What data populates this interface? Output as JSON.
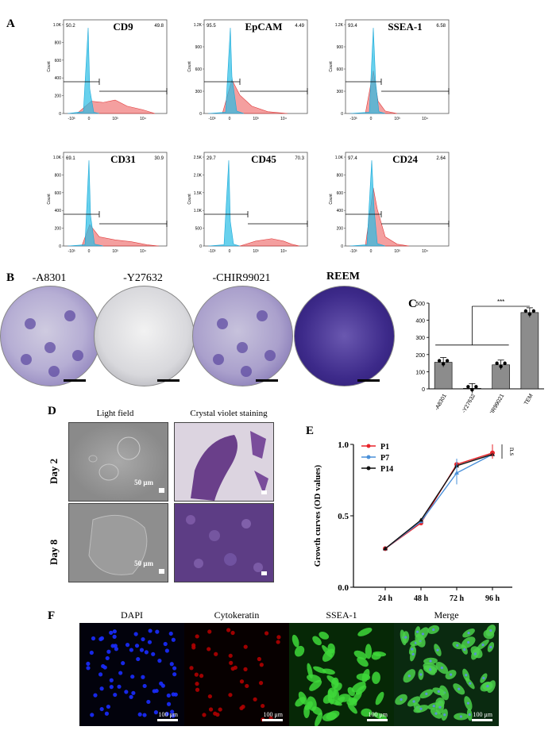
{
  "panels": {
    "a": "A",
    "b": "B",
    "c": "C",
    "d": "D",
    "e": "E",
    "f": "F"
  },
  "flow": [
    {
      "marker": "CD9",
      "left_pct": "50.2",
      "right_pct": "49.8",
      "yticks": [
        "0",
        "200",
        "400",
        "600",
        "800",
        "1.0K"
      ],
      "xticks": [
        "-10³",
        "0",
        "10³",
        "10⁴"
      ]
    },
    {
      "marker": "EpCAM",
      "left_pct": "95.5",
      "right_pct": "4.49",
      "yticks": [
        "0",
        "300",
        "600",
        "900",
        "1.2K"
      ],
      "xticks": [
        "-10³",
        "0",
        "10³",
        "10⁴"
      ]
    },
    {
      "marker": "SSEA-1",
      "left_pct": "93.4",
      "right_pct": "6.58",
      "yticks": [
        "0",
        "300",
        "600",
        "900",
        "1.2K"
      ],
      "xticks": [
        "-10³",
        "0",
        "10³",
        "10⁴"
      ]
    },
    {
      "marker": "CD31",
      "left_pct": "69.1",
      "right_pct": "30.9",
      "yticks": [
        "0",
        "200",
        "400",
        "600",
        "800",
        "1.0K"
      ],
      "xticks": [
        "-10³",
        "0",
        "10³",
        "10⁴"
      ]
    },
    {
      "marker": "CD45",
      "left_pct": "29.7",
      "right_pct": "70.3",
      "yticks": [
        "0",
        "500",
        "1.0K",
        "1.5K",
        "2.0K",
        "2.5K"
      ],
      "xticks": [
        "-10³",
        "0",
        "10³",
        "10⁴"
      ]
    },
    {
      "marker": "CD24",
      "left_pct": "97.4",
      "right_pct": "2.64",
      "yticks": [
        "0",
        "200",
        "400",
        "600",
        "800",
        "1.0K"
      ],
      "xticks": [
        "-10³",
        "0",
        "10³",
        "10⁴"
      ]
    }
  ],
  "flow_ylabel": "Count",
  "plates": [
    "-A8301",
    "-Y27632",
    "-CHIR99021",
    "REEM"
  ],
  "chart_data": [
    {
      "type": "bar",
      "categories": [
        "-A8301",
        "-Y27632",
        "-CHIR99021",
        "TEM"
      ],
      "values": [
        155,
        3,
        140,
        445
      ],
      "ylim": [
        0,
        500
      ],
      "yticks": [
        "0",
        "100",
        "200",
        "300",
        "400",
        "500"
      ],
      "significance": "***"
    },
    {
      "type": "line",
      "x": [
        "24 h",
        "48 h",
        "72 h",
        "96 h"
      ],
      "series": [
        {
          "name": "P1",
          "values": [
            0.27,
            0.45,
            0.86,
            0.94
          ],
          "color": "#e8242a"
        },
        {
          "name": "P7",
          "values": [
            0.27,
            0.46,
            0.8,
            0.93
          ],
          "color": "#4a90d9"
        },
        {
          "name": "P14",
          "values": [
            0.27,
            0.47,
            0.85,
            0.93
          ],
          "color": "#111111"
        }
      ],
      "ylabel": "Growth curves (OD values)",
      "ylim": [
        0,
        1.0
      ],
      "yticks": [
        "0.0",
        "0.5",
        "1.0"
      ],
      "annotation": "n.s"
    }
  ],
  "d_panel": {
    "col1": "Light field",
    "col2": "Crystal violet staining",
    "row1": "Day 2",
    "row2": "Day 8",
    "scale": "50 μm"
  },
  "f_panel": {
    "titles": [
      "DAPI",
      "Cytokeratin",
      "SSEA-1",
      "Merge"
    ],
    "scale": "100 μm"
  }
}
